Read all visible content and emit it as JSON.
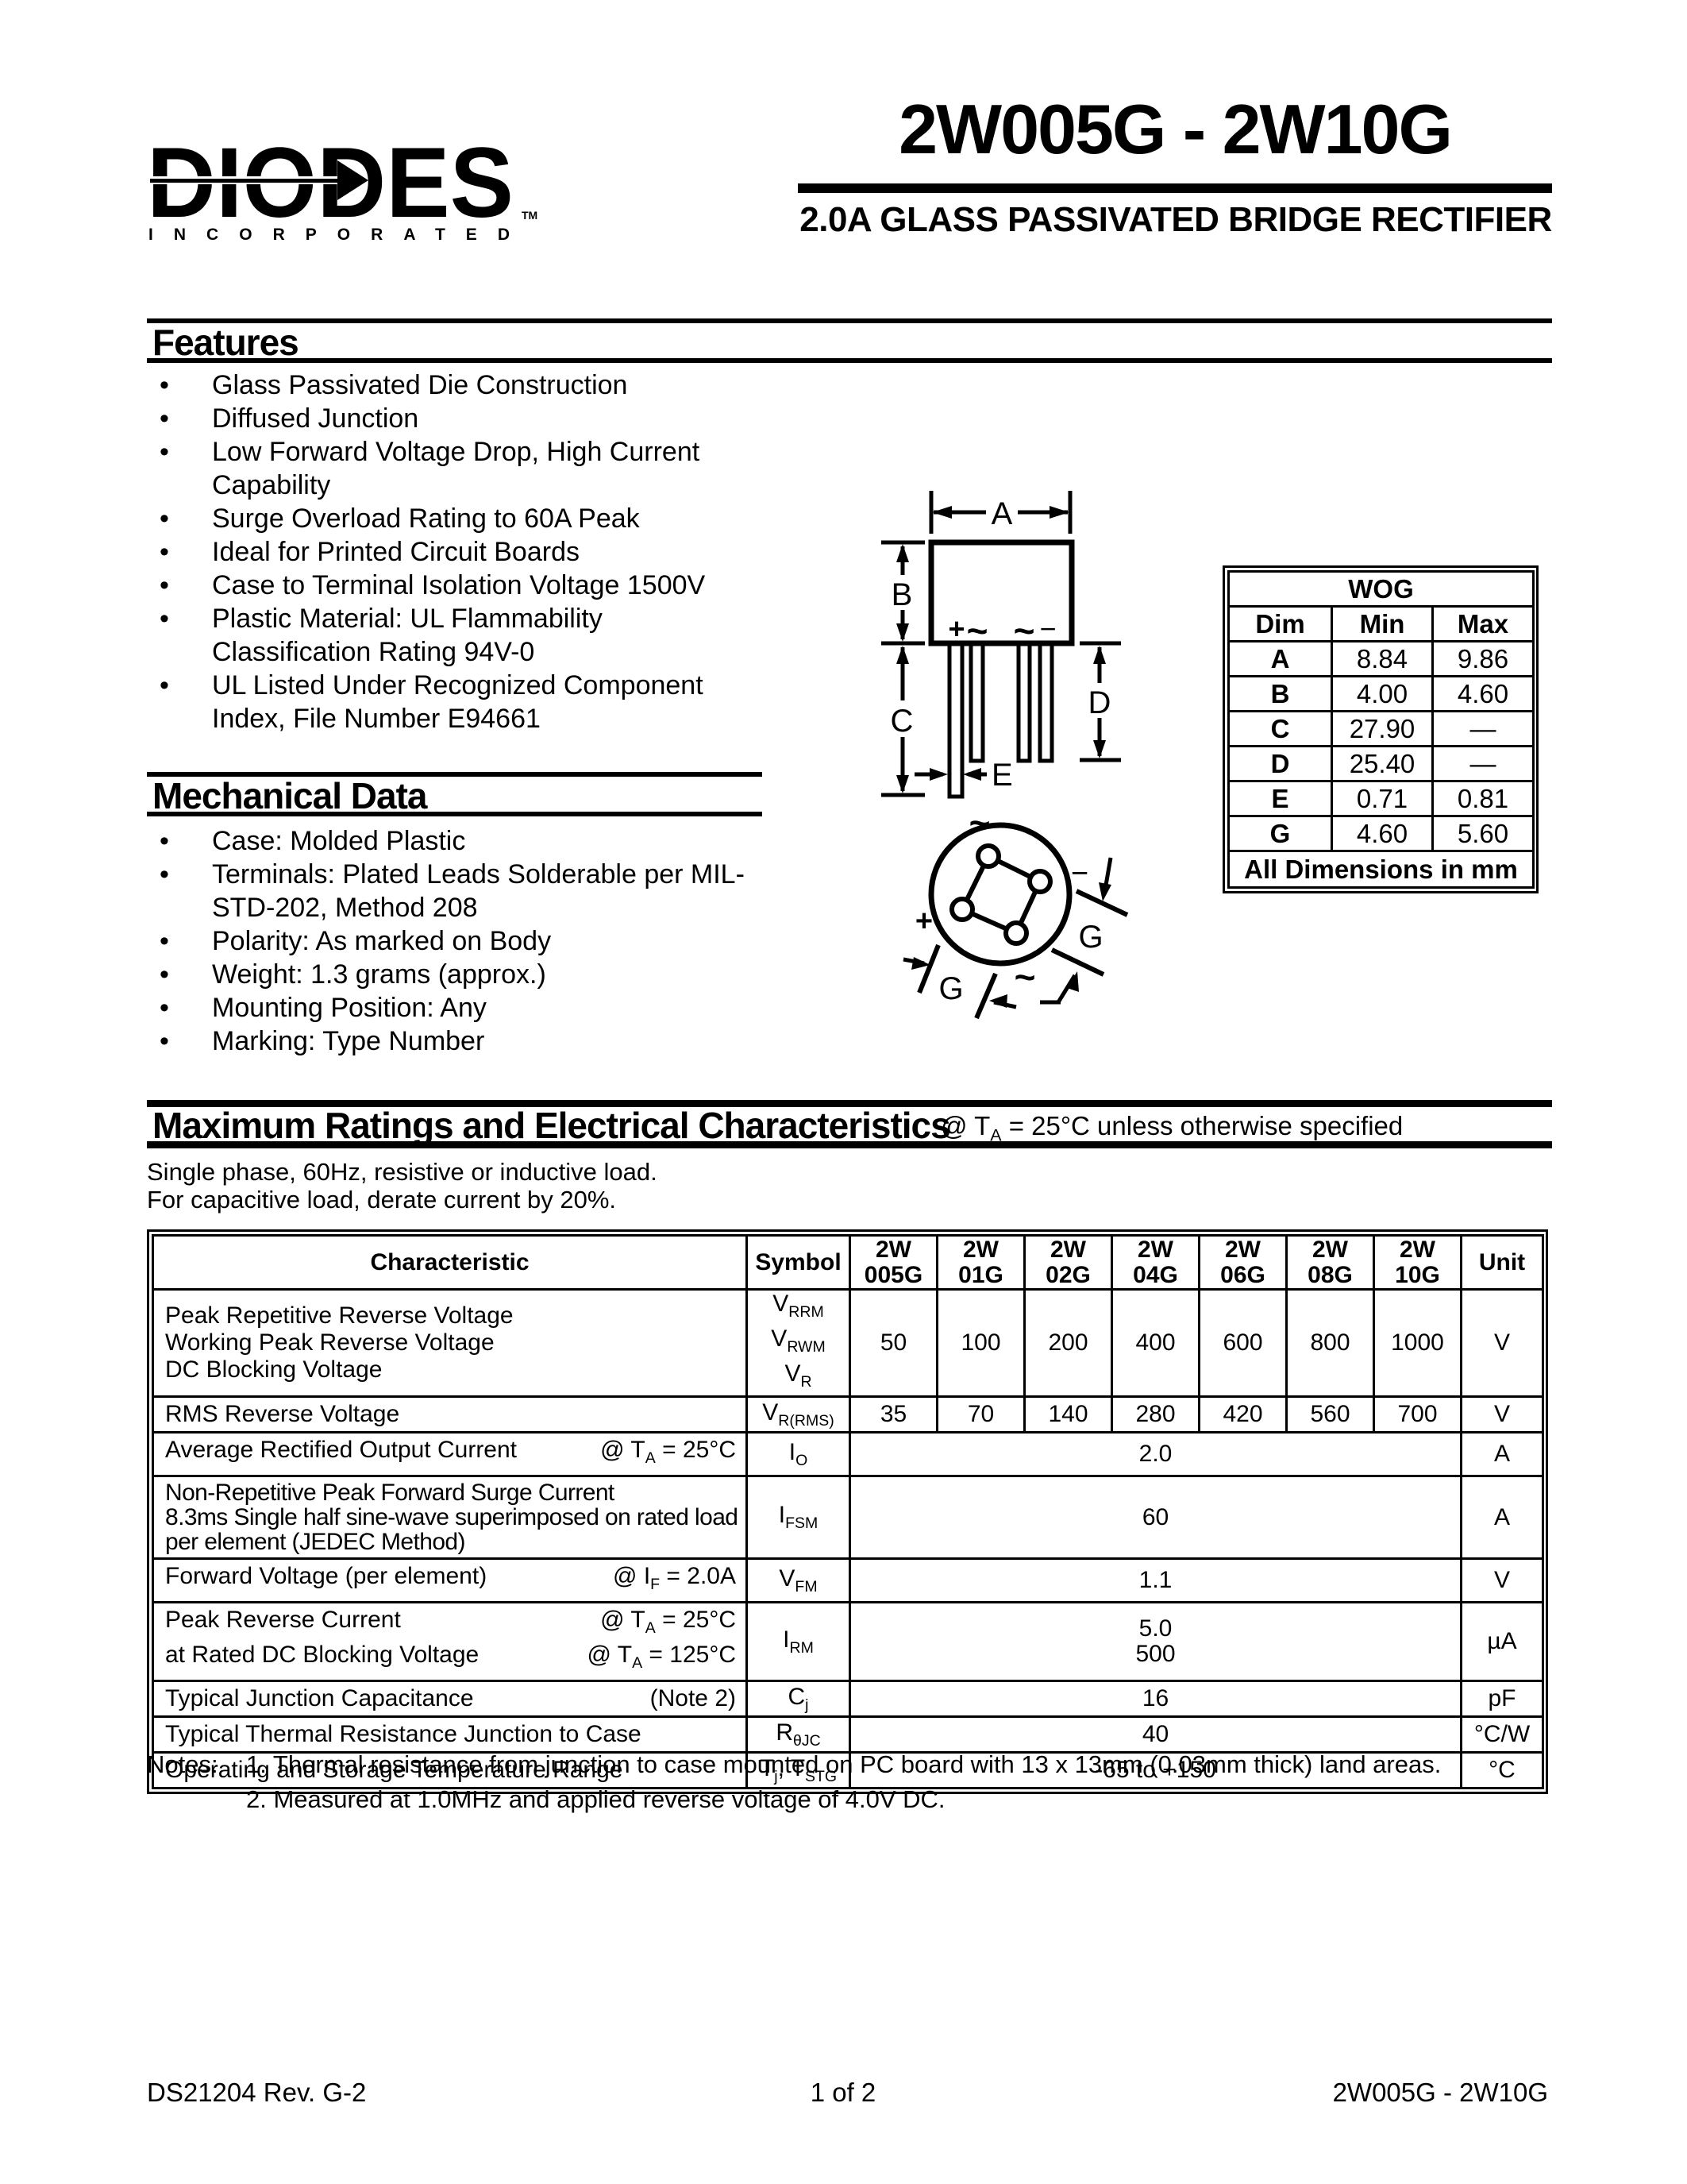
{
  "header": {
    "brand": "DIODES",
    "brand_sub": "INCORPORATED",
    "brand_tm": "TM",
    "title": "2W005G - 2W10G",
    "subtitle": "2.0A GLASS PASSIVATED BRIDGE RECTIFIER"
  },
  "features": {
    "title": "Features",
    "items": [
      "Glass Passivated Die Construction",
      "Diffused Junction",
      "Low Forward Voltage Drop, High Current Capability",
      "Surge Overload Rating to 60A Peak",
      "Ideal for Printed Circuit Boards",
      "Case to Terminal Isolation Voltage 1500V",
      "Plastic Material: UL Flammability Classification Rating 94V-0",
      "UL Listed Under Recognized Component Index, File Number E94661"
    ]
  },
  "mechanical": {
    "title": "Mechanical Data",
    "items": [
      "Case: Molded Plastic",
      "Terminals: Plated Leads Solderable per MIL-STD-202, Method 208",
      "Polarity: As marked on Body",
      "Weight: 1.3 grams (approx.)",
      "Mounting Position: Any",
      "Marking: Type Number"
    ]
  },
  "package": {
    "dims": {
      "a": "A",
      "b": "B",
      "c": "C",
      "d": "D",
      "e": "E",
      "g": "G"
    },
    "marks": {
      "plus": "+",
      "minus": "−",
      "ac": "~"
    }
  },
  "dim_table": {
    "title": "WOG",
    "columns": [
      "Dim",
      "Min",
      "Max"
    ],
    "rows": [
      {
        "dim": "A",
        "min": "8.84",
        "max": "9.86"
      },
      {
        "dim": "B",
        "min": "4.00",
        "max": "4.60"
      },
      {
        "dim": "C",
        "min": "27.90",
        "max": "—"
      },
      {
        "dim": "D",
        "min": "25.40",
        "max": "—"
      },
      {
        "dim": "E",
        "min": "0.71",
        "max": "0.81"
      },
      {
        "dim": "G",
        "min": "4.60",
        "max": "5.60"
      }
    ],
    "footer": "All Dimensions in mm"
  },
  "ratings": {
    "title": "Maximum Ratings and Electrical Characteristics",
    "note": [
      {
        "t": "@ T"
      },
      {
        "sub": "A"
      },
      {
        "t": " = 25°C unless otherwise specified"
      }
    ],
    "cond1": "Single phase, 60Hz, resistive or inductive load.",
    "cond2": "For capacitive load, derate current by 20%.",
    "table": {
      "headers": {
        "characteristic": "Characteristic",
        "symbol": "Symbol",
        "parts": [
          [
            "2W",
            "005G"
          ],
          [
            "2W",
            "01G"
          ],
          [
            "2W",
            "02G"
          ],
          [
            "2W",
            "04G"
          ],
          [
            "2W",
            "06G"
          ],
          [
            "2W",
            "08G"
          ],
          [
            "2W",
            "10G"
          ]
        ],
        "unit": "Unit"
      },
      "rows": [
        {
          "lines": [
            "Peak Repetitive Reverse Voltage",
            "Working Peak Reverse Voltage",
            "DC Blocking Voltage"
          ],
          "symbol": [
            {
              "t": "V"
            },
            {
              "sub": "RRM"
            },
            {
              "br": true
            },
            {
              "t": "V"
            },
            {
              "sub": "RWM"
            },
            {
              "br": true
            },
            {
              "t": "V"
            },
            {
              "sub": "R"
            }
          ],
          "values": [
            "50",
            "100",
            "200",
            "400",
            "600",
            "800",
            "1000"
          ],
          "unit": "V"
        },
        {
          "left": "RMS Reverse Voltage",
          "symbol": [
            {
              "t": "V"
            },
            {
              "sub": "R(RMS)"
            }
          ],
          "values": [
            "35",
            "70",
            "140",
            "280",
            "420",
            "560",
            "700"
          ],
          "unit": "V"
        },
        {
          "left": "Average Rectified Output Current",
          "right": [
            {
              "t": "@ T"
            },
            {
              "sub": "A"
            },
            {
              "t": " = 25°C"
            }
          ],
          "symbol": [
            {
              "t": "I"
            },
            {
              "sub": "O"
            }
          ],
          "span": "2.0",
          "unit": "A"
        },
        {
          "lines": [
            "Non-Repetitive Peak Forward Surge Current",
            "8.3ms Single half sine-wave superimposed on rated load",
            "per element (JEDEC Method)"
          ],
          "symbol": [
            {
              "t": "I"
            },
            {
              "sub": "FSM"
            }
          ],
          "span": "60",
          "unit": "A"
        },
        {
          "left": "Forward Voltage (per element)",
          "right": [
            {
              "t": "@ I"
            },
            {
              "sub": "F"
            },
            {
              "t": " = 2.0A"
            }
          ],
          "symbol": [
            {
              "t": "V"
            },
            {
              "sub": "FM"
            }
          ],
          "span": "1.1",
          "unit": "V"
        },
        {
          "pairs": [
            {
              "left": "Peak Reverse Current",
              "right": [
                {
                  "t": "@ T"
                },
                {
                  "sub": "A"
                },
                {
                  "t": " =  25°C"
                }
              ]
            },
            {
              "left": "at Rated DC Blocking Voltage",
              "right": [
                {
                  "t": "@ T"
                },
                {
                  "sub": "A"
                },
                {
                  "t": " = 125°C"
                }
              ]
            }
          ],
          "symbol": [
            {
              "t": "I"
            },
            {
              "sub": "RM"
            }
          ],
          "span_lines": [
            "5.0",
            "500"
          ],
          "unit": "µA"
        },
        {
          "left": "Typical Junction Capacitance",
          "right_plain": "(Note 2)",
          "symbol": [
            {
              "t": "C"
            },
            {
              "sub": "j"
            }
          ],
          "span": "16",
          "unit": "pF"
        },
        {
          "left": "Typical Thermal Resistance Junction to Case",
          "symbol": [
            {
              "t": "R"
            },
            {
              "sub": "θJC"
            }
          ],
          "span": "40",
          "unit": "°C/W"
        },
        {
          "left": "Operating and Storage Temperature Range",
          "symbol": [
            {
              "t": "T"
            },
            {
              "sub": "j"
            },
            {
              "t": ", T"
            },
            {
              "sub": "STG"
            }
          ],
          "span": "-65 to +150",
          "unit": "°C"
        }
      ]
    }
  },
  "notes": {
    "label": "Notes:",
    "items": [
      "1. Thermal resistance from junction to case mounted on PC board with 13 x 13mm (0.03mm thick) land areas.",
      "2. Measured at 1.0MHz and applied reverse voltage of 4.0V DC."
    ]
  },
  "footer": {
    "left": "DS21204 Rev. G-2",
    "center": "1 of 2",
    "right": "2W005G - 2W10G"
  }
}
